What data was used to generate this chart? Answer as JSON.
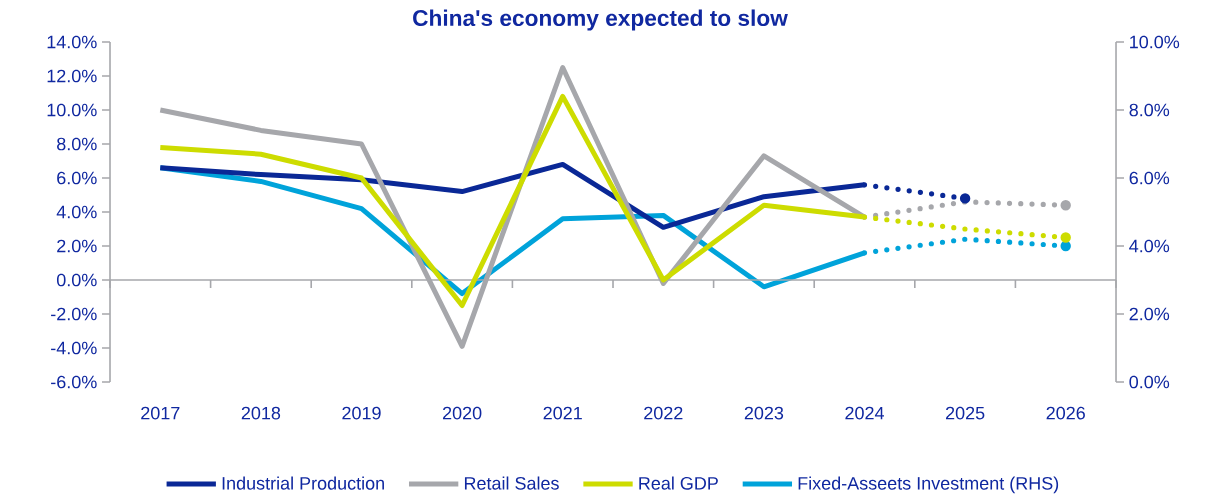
{
  "chart_data": {
    "type": "line",
    "title": "China's economy expected to slow",
    "categories": [
      "2017",
      "2018",
      "2019",
      "2020",
      "2021",
      "2022",
      "2023",
      "2024",
      "2025",
      "2026"
    ],
    "ylim": [
      -6,
      14
    ],
    "yticks": [
      {
        "value": -6,
        "label": "-6.0%"
      },
      {
        "value": -4,
        "label": "-4.0%"
      },
      {
        "value": -2,
        "label": "-2.0%"
      },
      {
        "value": 0,
        "label": "0.0%"
      },
      {
        "value": 2,
        "label": "2.0%"
      },
      {
        "value": 4,
        "label": "4.0%"
      },
      {
        "value": 6,
        "label": "6.0%"
      },
      {
        "value": 8,
        "label": "8.0%"
      },
      {
        "value": 10,
        "label": "10.0%"
      },
      {
        "value": 12,
        "label": "12.0%"
      },
      {
        "value": 14,
        "label": "14.0%"
      }
    ],
    "y2lim": [
      0,
      10
    ],
    "y2ticks": [
      {
        "value": 0,
        "label": "0.0%"
      },
      {
        "value": 2,
        "label": "2.0%"
      },
      {
        "value": 4,
        "label": "4.0%"
      },
      {
        "value": 6,
        "label": "6.0%"
      },
      {
        "value": 8,
        "label": "8.0%"
      },
      {
        "value": 10,
        "label": "10.0%"
      }
    ],
    "legend": "bottom",
    "series": [
      {
        "name": "Industrial Production",
        "color": "#0a2896",
        "line_style": "solid",
        "values": [
          6.6,
          6.2,
          5.9,
          5.2,
          6.8,
          3.1,
          4.9,
          5.6,
          null,
          null
        ]
      },
      {
        "name": "Retail Sales",
        "color": "#a6a7ab",
        "line_style": "solid",
        "values": [
          10.0,
          8.8,
          8.0,
          -3.9,
          12.5,
          -0.2,
          7.3,
          3.7,
          null,
          null
        ]
      },
      {
        "name": "Real GDP",
        "color": "#cddc00",
        "line_style": "solid",
        "values": [
          7.8,
          7.4,
          6.0,
          -1.5,
          10.8,
          0.0,
          4.4,
          3.7,
          null,
          null
        ]
      },
      {
        "name": "Fixed-Asseets Investment (RHS)",
        "color": "#00a3da",
        "line_style": "solid",
        "axis": "y2",
        "values": [
          6.3,
          5.9,
          5.1,
          2.6,
          4.8,
          4.9,
          2.8,
          3.8,
          null,
          null
        ]
      },
      {
        "color": "#a6a7ab",
        "line_style": "dotted",
        "values": [
          null,
          null,
          null,
          null,
          null,
          null,
          null,
          3.7,
          4.6,
          4.4
        ]
      },
      {
        "color": "#0a2896",
        "line_style": "dotted",
        "values": [
          null,
          null,
          null,
          null,
          null,
          null,
          null,
          5.6,
          4.8,
          null
        ]
      },
      {
        "color": "#cddc00",
        "line_style": "dotted",
        "values": [
          null,
          null,
          null,
          null,
          null,
          null,
          null,
          3.7,
          3.0,
          2.5
        ]
      },
      {
        "color": "#00a3da",
        "line_style": "dotted",
        "axis": "y2",
        "values": [
          null,
          null,
          null,
          null,
          null,
          null,
          null,
          3.8,
          4.2,
          4.0
        ]
      }
    ]
  }
}
